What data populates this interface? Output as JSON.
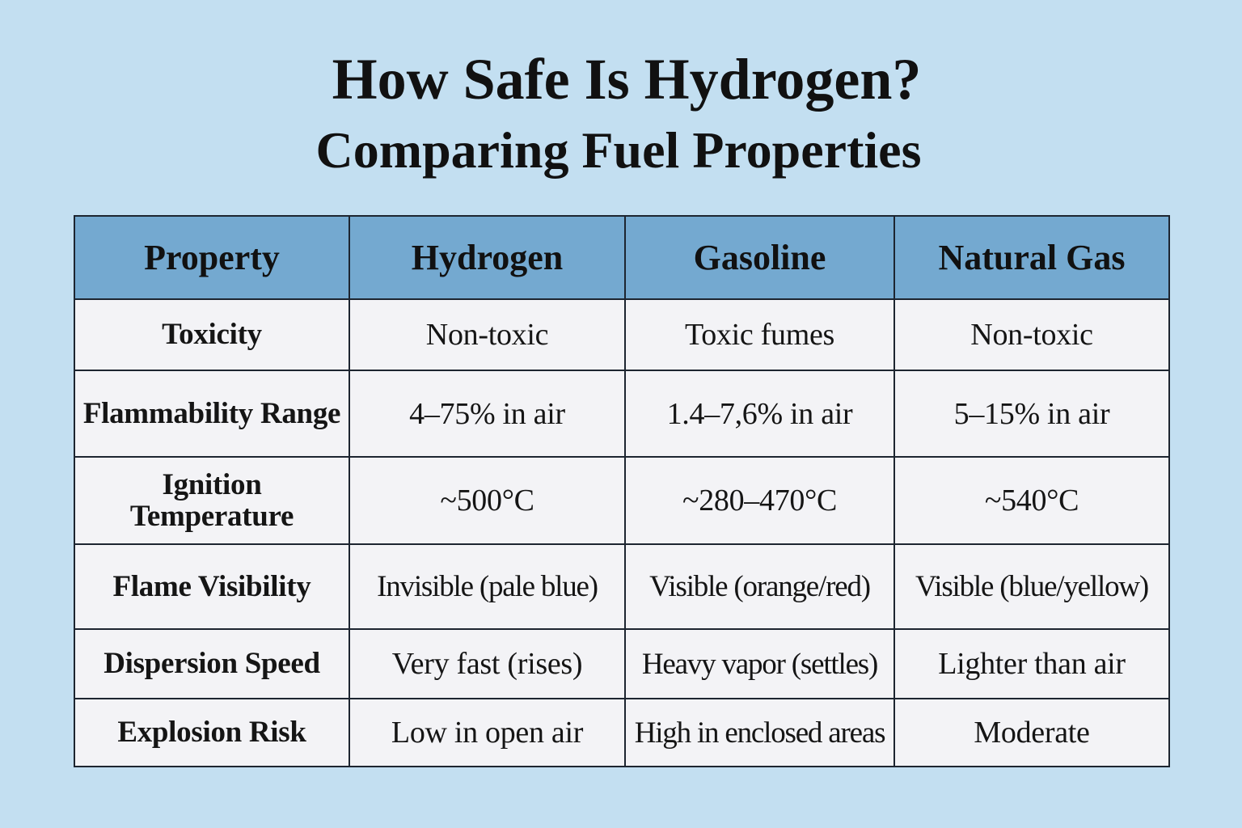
{
  "page": {
    "title": "How Safe Is Hydrogen?",
    "subtitle": "Comparing Fuel Properties"
  },
  "colors": {
    "background": "#c3dff1",
    "header_fill": "#74a9d0",
    "cell_fill": "#f3f3f6",
    "border": "#1d2530"
  },
  "table": {
    "headers": [
      "Property",
      "Hydrogen",
      "Gasoline",
      "Natural Gas"
    ],
    "rows": [
      {
        "property": "Toxicity",
        "hydrogen": "Non-toxic",
        "gasoline": "Toxic fumes",
        "natural_gas": "Non-toxic"
      },
      {
        "property": "Flammability Range",
        "hydrogen": "4–75% in air",
        "gasoline": "1.4–7,6% in air",
        "natural_gas": "5–15% in air"
      },
      {
        "property": "Ignition Temperature",
        "hydrogen": "~500°C",
        "gasoline": "~280–470°C",
        "natural_gas": "~540°C"
      },
      {
        "property": "Flame Visibility",
        "hydrogen": "Invisible (pale blue)",
        "gasoline": "Visible (orange/red)",
        "natural_gas": "Visible (blue/yellow)"
      },
      {
        "property": "Dispersion Speed",
        "hydrogen": "Very fast (rises)",
        "gasoline": "Heavy vapor (settles)",
        "natural_gas": "Lighter than air"
      },
      {
        "property": "Explosion Risk",
        "hydrogen": "Low in open air",
        "gasoline": "High in enclosed areas",
        "natural_gas": "Moderate"
      }
    ]
  }
}
